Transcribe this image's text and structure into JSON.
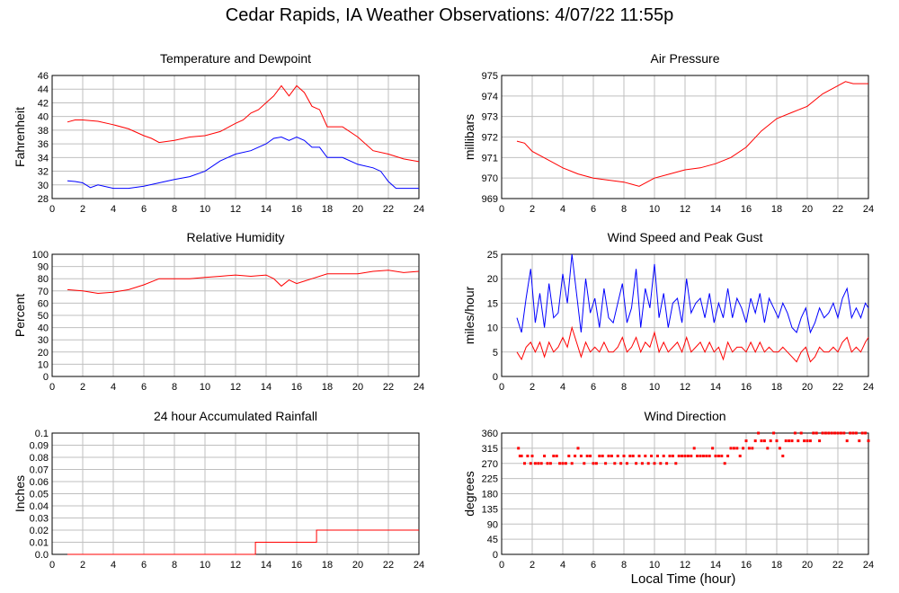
{
  "page": {
    "title": "Cedar Rapids, IA Weather Observations: 4/07/22 11:55p",
    "xlabel": "Local Time (hour)"
  },
  "chart_data": [
    {
      "type": "line",
      "title": "Temperature and Dewpoint",
      "xlabel": "",
      "ylabel": "Fahrenheit",
      "xlim": [
        0,
        24
      ],
      "ylim": [
        28,
        46
      ],
      "xticks": [
        0,
        2,
        4,
        6,
        8,
        10,
        12,
        14,
        16,
        18,
        20,
        22,
        24
      ],
      "yticks": [
        28,
        30,
        32,
        34,
        36,
        38,
        40,
        42,
        44,
        46
      ],
      "grid": true,
      "series": [
        {
          "color": "#ff0000",
          "x": [
            1,
            1.5,
            2,
            3,
            4,
            5,
            6,
            6.5,
            7,
            8,
            9,
            10,
            11,
            12,
            12.5,
            13,
            13.5,
            14,
            14.5,
            15,
            15.5,
            16,
            16.5,
            17,
            17.5,
            18,
            19,
            20,
            21,
            22,
            23,
            24
          ],
          "y": [
            39.2,
            39.5,
            39.5,
            39.3,
            38.8,
            38.2,
            37.2,
            36.8,
            36.2,
            36.5,
            37,
            37.2,
            37.8,
            39,
            39.5,
            40.5,
            41,
            42,
            43,
            44.5,
            43,
            44.5,
            43.5,
            41.5,
            41,
            38.5,
            38.5,
            37,
            35,
            34.5,
            33.8,
            33.4
          ]
        },
        {
          "color": "#0000ff",
          "x": [
            1,
            1.5,
            2,
            2.5,
            3,
            4,
            5,
            6,
            7,
            8,
            9,
            10,
            11,
            12,
            13,
            14,
            14.5,
            15,
            15.5,
            16,
            16.5,
            17,
            17.5,
            18,
            19,
            20,
            21,
            21.5,
            22,
            22.5,
            23,
            24
          ],
          "y": [
            30.6,
            30.5,
            30.3,
            29.6,
            30,
            29.5,
            29.5,
            29.8,
            30.3,
            30.8,
            31.2,
            32,
            33.5,
            34.5,
            35,
            36,
            36.8,
            37,
            36.5,
            37,
            36.5,
            35.5,
            35.5,
            34,
            34,
            33,
            32.5,
            32,
            30.5,
            29.5,
            29.5,
            29.5
          ]
        }
      ]
    },
    {
      "type": "line",
      "title": "Air Pressure",
      "xlabel": "",
      "ylabel": "millibars",
      "xlim": [
        0,
        24
      ],
      "ylim": [
        969,
        975
      ],
      "xticks": [
        0,
        2,
        4,
        6,
        8,
        10,
        12,
        14,
        16,
        18,
        20,
        22,
        24
      ],
      "yticks": [
        969,
        970,
        971,
        972,
        973,
        974,
        975
      ],
      "grid": true,
      "series": [
        {
          "color": "#ff0000",
          "x": [
            1,
            1.5,
            2,
            3,
            4,
            5,
            6,
            7,
            8,
            8.5,
            9,
            10,
            11,
            12,
            13,
            14,
            15,
            16,
            17,
            18,
            19,
            20,
            20.5,
            21,
            22,
            22.5,
            23,
            24
          ],
          "y": [
            971.8,
            971.7,
            971.3,
            970.9,
            970.5,
            970.2,
            970,
            969.9,
            969.8,
            969.7,
            969.6,
            970,
            970.2,
            970.4,
            970.5,
            970.7,
            971,
            971.5,
            972.3,
            972.9,
            973.2,
            973.5,
            973.8,
            974.1,
            974.5,
            974.7,
            974.6,
            974.6
          ]
        }
      ]
    },
    {
      "type": "line",
      "title": "Relative Humidity",
      "xlabel": "",
      "ylabel": "Percent",
      "xlim": [
        0,
        24
      ],
      "ylim": [
        0,
        100
      ],
      "xticks": [
        0,
        2,
        4,
        6,
        8,
        10,
        12,
        14,
        16,
        18,
        20,
        22,
        24
      ],
      "yticks": [
        0,
        10,
        20,
        30,
        40,
        50,
        60,
        70,
        80,
        90,
        100
      ],
      "grid": true,
      "series": [
        {
          "color": "#ff0000",
          "x": [
            1,
            2,
            3,
            4,
            5,
            6,
            7,
            8,
            9,
            10,
            11,
            12,
            13,
            14,
            14.5,
            15,
            15.5,
            16,
            16.5,
            17,
            18,
            19,
            20,
            21,
            22,
            23,
            24
          ],
          "y": [
            71,
            70,
            68,
            69,
            71,
            75,
            80,
            80,
            80,
            81,
            82,
            83,
            82,
            83,
            80,
            74,
            79,
            76,
            78,
            80,
            84,
            84,
            84,
            86,
            87,
            85,
            86
          ]
        }
      ]
    },
    {
      "type": "line",
      "title": "Wind Speed and Peak Gust",
      "xlabel": "",
      "ylabel": "miles/hour",
      "xlim": [
        0,
        24
      ],
      "ylim": [
        0,
        25
      ],
      "xticks": [
        0,
        2,
        4,
        6,
        8,
        10,
        12,
        14,
        16,
        18,
        20,
        22,
        24
      ],
      "yticks": [
        0,
        5,
        10,
        15,
        20,
        25
      ],
      "grid": true,
      "series": [
        {
          "color": "#0000ff",
          "x": [
            1,
            1.3,
            1.6,
            1.9,
            2.2,
            2.5,
            2.8,
            3.1,
            3.4,
            3.7,
            4,
            4.3,
            4.6,
            4.9,
            5.2,
            5.5,
            5.8,
            6.1,
            6.4,
            6.7,
            7,
            7.3,
            7.6,
            7.9,
            8.2,
            8.5,
            8.8,
            9.1,
            9.4,
            9.7,
            10,
            10.3,
            10.6,
            10.9,
            11.2,
            11.5,
            11.8,
            12.1,
            12.4,
            12.7,
            13,
            13.3,
            13.6,
            13.9,
            14.2,
            14.5,
            14.8,
            15.1,
            15.4,
            15.7,
            16,
            16.3,
            16.6,
            16.9,
            17.2,
            17.5,
            17.8,
            18.1,
            18.4,
            18.7,
            19,
            19.3,
            19.6,
            19.9,
            20.2,
            20.5,
            20.8,
            21.1,
            21.4,
            21.7,
            22,
            22.3,
            22.6,
            22.9,
            23.2,
            23.5,
            23.8,
            24
          ],
          "y": [
            12,
            9,
            16,
            22,
            11,
            17,
            10,
            19,
            12,
            13,
            21,
            15,
            25,
            17,
            9,
            20,
            13,
            16,
            10,
            18,
            12,
            11,
            15,
            19,
            11,
            14,
            22,
            10,
            18,
            14,
            23,
            12,
            17,
            10,
            15,
            16,
            11,
            20,
            13,
            15,
            16,
            12,
            17,
            11,
            15,
            12,
            18,
            12,
            16,
            14,
            11,
            16,
            13,
            17,
            11,
            16,
            14,
            12,
            15,
            13,
            10,
            9,
            12,
            14,
            9,
            11,
            14,
            12,
            13,
            15,
            12,
            16,
            18,
            12,
            14,
            12,
            15,
            14
          ]
        },
        {
          "color": "#ff0000",
          "x": [
            1,
            1.3,
            1.6,
            1.9,
            2.2,
            2.5,
            2.8,
            3.1,
            3.4,
            3.7,
            4,
            4.3,
            4.6,
            4.9,
            5.2,
            5.5,
            5.8,
            6.1,
            6.4,
            6.7,
            7,
            7.3,
            7.6,
            7.9,
            8.2,
            8.5,
            8.8,
            9.1,
            9.4,
            9.7,
            10,
            10.3,
            10.6,
            10.9,
            11.2,
            11.5,
            11.8,
            12.1,
            12.4,
            12.7,
            13,
            13.3,
            13.6,
            13.9,
            14.2,
            14.5,
            14.8,
            15.1,
            15.4,
            15.7,
            16,
            16.3,
            16.6,
            16.9,
            17.2,
            17.5,
            17.8,
            18.1,
            18.4,
            18.7,
            19,
            19.3,
            19.6,
            19.9,
            20.2,
            20.5,
            20.8,
            21.1,
            21.4,
            21.7,
            22,
            22.3,
            22.6,
            22.9,
            23.2,
            23.5,
            23.8,
            24
          ],
          "y": [
            5,
            3.5,
            6,
            7,
            5,
            7,
            4,
            7,
            5,
            6,
            8,
            6,
            10,
            7,
            4,
            7,
            5,
            6,
            5,
            7,
            5,
            5,
            6,
            8,
            5,
            6,
            8,
            5,
            7,
            6,
            9,
            5,
            7,
            5,
            6,
            7,
            5,
            8,
            5,
            6,
            7,
            5,
            7,
            5,
            6,
            3.5,
            7,
            5,
            6,
            6,
            5,
            7,
            5,
            7,
            5,
            6,
            5,
            5,
            6,
            5,
            4,
            3,
            5,
            6,
            3,
            4,
            6,
            5,
            5,
            6,
            5,
            7,
            8,
            5,
            6,
            5,
            7,
            8
          ]
        }
      ]
    },
    {
      "type": "line",
      "title": "24 hour Accumulated Rainfall",
      "xlabel": "",
      "ylabel": "Inches",
      "xlim": [
        0,
        24
      ],
      "ylim": [
        0,
        0.1
      ],
      "xticks": [
        0,
        2,
        4,
        6,
        8,
        10,
        12,
        14,
        16,
        18,
        20,
        22,
        24
      ],
      "yticks": [
        0.0,
        0.01,
        0.02,
        0.03,
        0.04,
        0.05,
        0.06,
        0.07,
        0.08,
        0.09,
        0.1
      ],
      "ytick_labels": [
        "0.0",
        "0.01",
        "0.02",
        "0.03",
        "0.04",
        "0.05",
        "0.06",
        "0.07",
        "0.08",
        "0.09",
        "0.1"
      ],
      "grid": true,
      "series": [
        {
          "color": "#ff0000",
          "x": [
            1,
            13.3,
            13.3,
            17.3,
            17.3,
            24
          ],
          "y": [
            0,
            0,
            0.01,
            0.01,
            0.02,
            0.02
          ]
        }
      ]
    },
    {
      "type": "scatter",
      "title": "Wind Direction",
      "xlabel": "Local Time (hour)",
      "ylabel": "degrees",
      "xlim": [
        0,
        24
      ],
      "ylim": [
        0,
        360
      ],
      "xticks": [
        0,
        2,
        4,
        6,
        8,
        10,
        12,
        14,
        16,
        18,
        20,
        22,
        24
      ],
      "yticks": [
        0,
        45,
        90,
        135,
        180,
        225,
        270,
        315,
        360
      ],
      "grid": true,
      "series": [
        {
          "color": "#ff0000",
          "x": [
            1.1,
            1.2,
            1.3,
            1.5,
            1.7,
            1.9,
            2.0,
            2.2,
            2.4,
            2.6,
            2.8,
            3.0,
            3.2,
            3.4,
            3.6,
            3.8,
            4.0,
            4.2,
            4.4,
            4.6,
            4.8,
            5.0,
            5.2,
            5.4,
            5.6,
            5.8,
            6.0,
            6.2,
            6.4,
            6.6,
            6.8,
            7.0,
            7.2,
            7.4,
            7.6,
            7.8,
            8.0,
            8.2,
            8.4,
            8.6,
            8.8,
            9.0,
            9.2,
            9.4,
            9.6,
            9.8,
            10.0,
            10.2,
            10.4,
            10.6,
            10.8,
            11.0,
            11.2,
            11.4,
            11.6,
            11.8,
            12.0,
            12.2,
            12.4,
            12.6,
            12.8,
            13.0,
            13.2,
            13.4,
            13.6,
            13.8,
            14.0,
            14.2,
            14.4,
            14.6,
            14.8,
            15.0,
            15.2,
            15.4,
            15.6,
            15.8,
            16.0,
            16.2,
            16.4,
            16.6,
            16.8,
            17.0,
            17.2,
            17.4,
            17.6,
            17.8,
            18.0,
            18.2,
            18.4,
            18.6,
            18.8,
            19.0,
            19.2,
            19.4,
            19.6,
            19.8,
            20.0,
            20.2,
            20.4,
            20.6,
            20.8,
            21.0,
            21.2,
            21.4,
            21.6,
            21.8,
            22.0,
            22.2,
            22.4,
            22.6,
            22.8,
            23.0,
            23.2,
            23.4,
            23.6,
            23.8,
            24.0
          ],
          "y": [
            315,
            292,
            292,
            270,
            292,
            270,
            292,
            270,
            270,
            270,
            292,
            270,
            270,
            292,
            292,
            270,
            270,
            270,
            292,
            270,
            292,
            315,
            292,
            270,
            292,
            292,
            270,
            270,
            292,
            292,
            270,
            292,
            292,
            270,
            292,
            270,
            292,
            270,
            292,
            292,
            270,
            292,
            270,
            292,
            270,
            292,
            270,
            292,
            270,
            292,
            270,
            292,
            292,
            270,
            292,
            292,
            292,
            292,
            292,
            315,
            292,
            292,
            292,
            292,
            292,
            315,
            292,
            292,
            292,
            270,
            292,
            315,
            315,
            315,
            292,
            315,
            337,
            315,
            315,
            337,
            360,
            337,
            337,
            315,
            337,
            360,
            337,
            315,
            292,
            337,
            337,
            337,
            360,
            337,
            360,
            337,
            337,
            337,
            360,
            360,
            337,
            360,
            360,
            360,
            360,
            360,
            360,
            360,
            360,
            337,
            360,
            360,
            360,
            337,
            360,
            360,
            337
          ]
        }
      ]
    }
  ]
}
